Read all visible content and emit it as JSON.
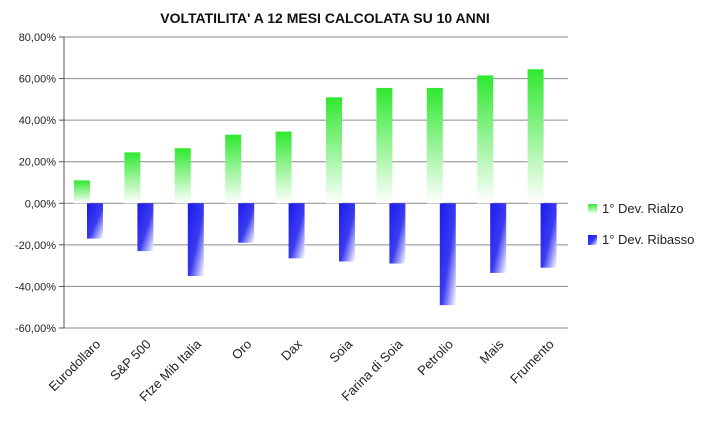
{
  "chart_data": {
    "type": "bar",
    "title": "VOLTATILITA' A 12 MESI CALCOLATA SU 10 ANNI",
    "categories": [
      "Eurodollaro",
      "S&P 500",
      "Ftze Mib Italia",
      "Oro",
      "Dax",
      "Soia",
      "Farina di Soia",
      "Petrolio",
      "Mais",
      "Frumento"
    ],
    "series": [
      {
        "name": "1° Dev. Rialzo",
        "values": [
          11,
          24.5,
          26.5,
          33,
          34.5,
          51,
          55.5,
          55.5,
          61.5,
          64.5
        ],
        "color": "#33ee33"
      },
      {
        "name": "1° Dev. Ribasso",
        "values": [
          -17,
          -23,
          -35,
          -19,
          -26.5,
          -28,
          -29,
          -49,
          -33.5,
          -31
        ],
        "color": "#2222ee"
      }
    ],
    "ylim": [
      -60,
      80
    ],
    "yticks": [
      "80,00%",
      "60,00%",
      "40,00%",
      "20,00%",
      "0,00%",
      "-20,00%",
      "-40,00%",
      "-60,00%"
    ],
    "ytick_values": [
      80,
      60,
      40,
      20,
      0,
      -20,
      -40,
      -60
    ],
    "grid": true,
    "legend_position": "right"
  }
}
